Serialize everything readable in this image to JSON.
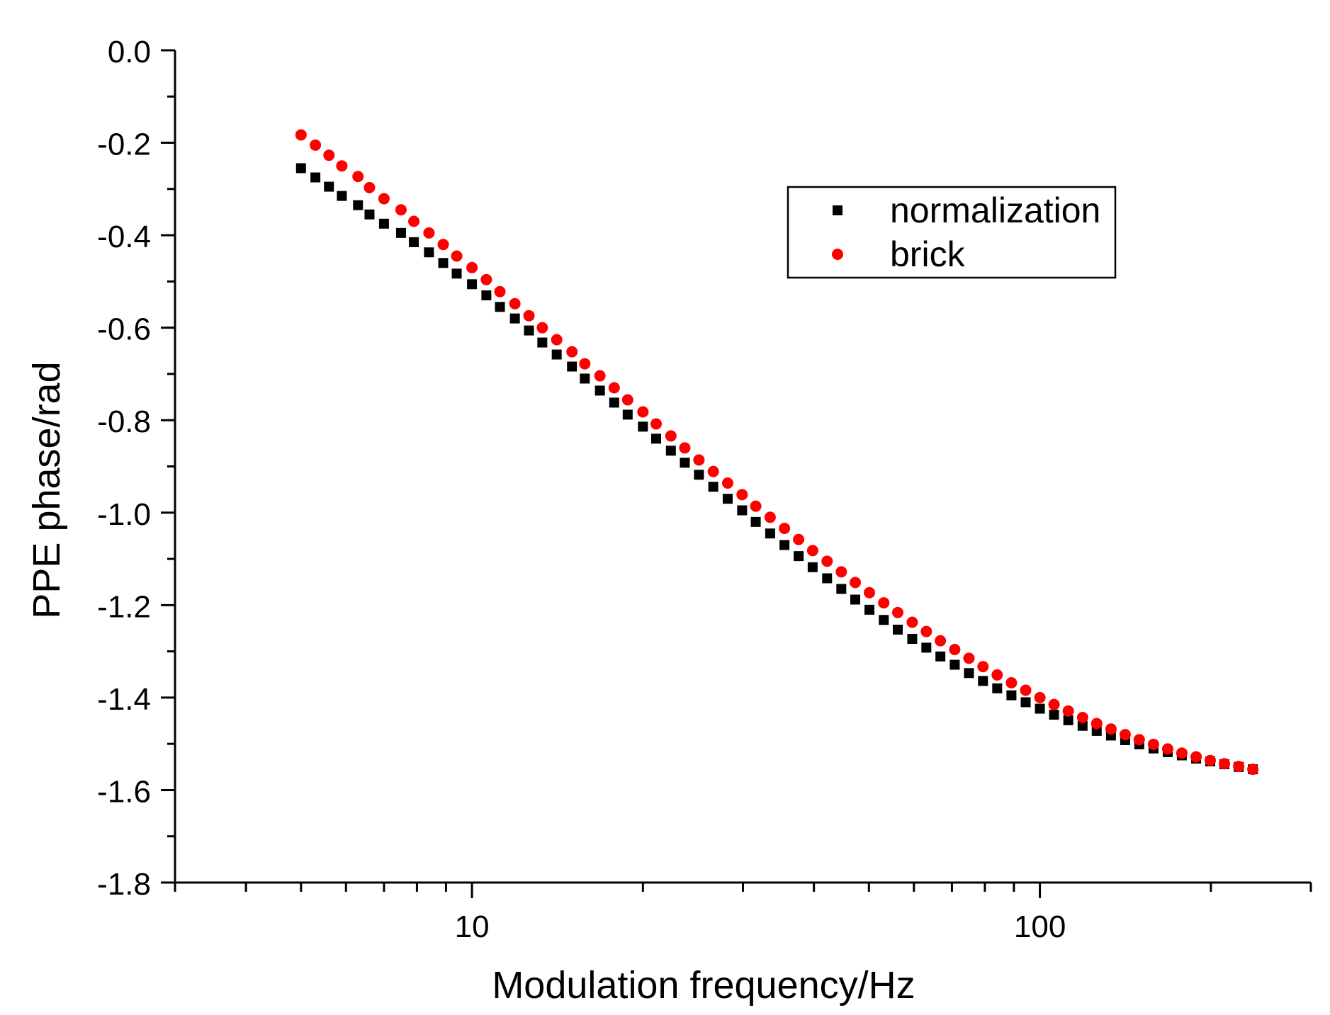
{
  "chart_data": {
    "type": "scatter",
    "title": "",
    "xlabel": "Modulation frequency/Hz",
    "ylabel": "PPE phase/rad",
    "xscale": "log",
    "xlim": [
      3,
      300
    ],
    "ylim": [
      -1.8,
      0.0
    ],
    "x_ticks": [
      10,
      100
    ],
    "x_tick_labels": [
      "10",
      "100"
    ],
    "y_ticks": [
      0.0,
      -0.2,
      -0.4,
      -0.6,
      -0.8,
      -1.0,
      -1.2,
      -1.4,
      -1.6,
      -1.8
    ],
    "y_tick_labels": [
      "0.0",
      "-0.2",
      "-0.4",
      "-0.6",
      "-0.8",
      "-1.0",
      "-1.2",
      "-1.4",
      "-1.6",
      "-1.8"
    ],
    "legend_position": "top-right",
    "colors": {
      "normalization": "#000000",
      "brick": "#ff0000",
      "axis": "#000000"
    },
    "series": [
      {
        "name": "normalization",
        "marker": "square",
        "x": [
          5.0,
          5.3,
          5.6,
          5.9,
          6.3,
          6.6,
          7.0,
          7.5,
          7.9,
          8.4,
          8.9,
          9.4,
          10.0,
          10.6,
          11.2,
          11.9,
          12.6,
          13.3,
          14.1,
          15.0,
          15.8,
          16.8,
          17.8,
          18.8,
          20.0,
          21.1,
          22.4,
          23.7,
          25.1,
          26.6,
          28.2,
          29.9,
          31.6,
          33.5,
          35.5,
          37.6,
          39.8,
          42.2,
          44.7,
          47.3,
          50.1,
          53.1,
          56.2,
          59.6,
          63.1,
          66.8,
          70.8,
          75.0,
          79.4,
          84.1,
          89.1,
          94.4,
          100.0,
          105.9,
          112.2,
          118.9,
          125.9,
          133.4,
          141.3,
          149.6,
          158.5,
          167.9,
          177.8,
          188.4,
          199.5,
          211.3,
          223.9,
          237.1
        ],
        "y": [
          -0.255,
          -0.275,
          -0.295,
          -0.315,
          -0.335,
          -0.355,
          -0.375,
          -0.395,
          -0.415,
          -0.437,
          -0.46,
          -0.483,
          -0.506,
          -0.53,
          -0.555,
          -0.58,
          -0.606,
          -0.632,
          -0.658,
          -0.684,
          -0.71,
          -0.736,
          -0.762,
          -0.788,
          -0.814,
          -0.84,
          -0.866,
          -0.892,
          -0.918,
          -0.944,
          -0.97,
          -0.995,
          -1.02,
          -1.045,
          -1.07,
          -1.094,
          -1.118,
          -1.142,
          -1.165,
          -1.188,
          -1.21,
          -1.232,
          -1.253,
          -1.273,
          -1.292,
          -1.311,
          -1.329,
          -1.347,
          -1.364,
          -1.38,
          -1.395,
          -1.41,
          -1.424,
          -1.437,
          -1.449,
          -1.461,
          -1.472,
          -1.482,
          -1.492,
          -1.501,
          -1.51,
          -1.518,
          -1.525,
          -1.532,
          -1.538,
          -1.544,
          -1.55,
          -1.555
        ]
      },
      {
        "name": "brick",
        "marker": "circle",
        "x": [
          5.0,
          5.3,
          5.6,
          5.9,
          6.3,
          6.6,
          7.0,
          7.5,
          7.9,
          8.4,
          8.9,
          9.4,
          10.0,
          10.6,
          11.2,
          11.9,
          12.6,
          13.3,
          14.1,
          15.0,
          15.8,
          16.8,
          17.8,
          18.8,
          20.0,
          21.1,
          22.4,
          23.7,
          25.1,
          26.6,
          28.2,
          29.9,
          31.6,
          33.5,
          35.5,
          37.6,
          39.8,
          42.2,
          44.7,
          47.3,
          50.1,
          53.1,
          56.2,
          59.6,
          63.1,
          66.8,
          70.8,
          75.0,
          79.4,
          84.1,
          89.1,
          94.4,
          100.0,
          105.9,
          112.2,
          118.9,
          125.9,
          133.4,
          141.3,
          149.6,
          158.5,
          167.9,
          177.8,
          188.4,
          199.5,
          211.3,
          223.9,
          237.1
        ],
        "y": [
          -0.183,
          -0.205,
          -0.227,
          -0.25,
          -0.273,
          -0.297,
          -0.321,
          -0.345,
          -0.37,
          -0.395,
          -0.42,
          -0.445,
          -0.47,
          -0.496,
          -0.522,
          -0.548,
          -0.574,
          -0.6,
          -0.626,
          -0.652,
          -0.678,
          -0.704,
          -0.73,
          -0.756,
          -0.782,
          -0.808,
          -0.834,
          -0.86,
          -0.886,
          -0.911,
          -0.936,
          -0.961,
          -0.986,
          -1.01,
          -1.034,
          -1.058,
          -1.082,
          -1.105,
          -1.128,
          -1.151,
          -1.173,
          -1.195,
          -1.216,
          -1.237,
          -1.257,
          -1.277,
          -1.296,
          -1.315,
          -1.333,
          -1.351,
          -1.368,
          -1.384,
          -1.4,
          -1.415,
          -1.429,
          -1.443,
          -1.456,
          -1.468,
          -1.48,
          -1.491,
          -1.501,
          -1.511,
          -1.52,
          -1.528,
          -1.536,
          -1.543,
          -1.549,
          -1.555
        ]
      }
    ]
  }
}
